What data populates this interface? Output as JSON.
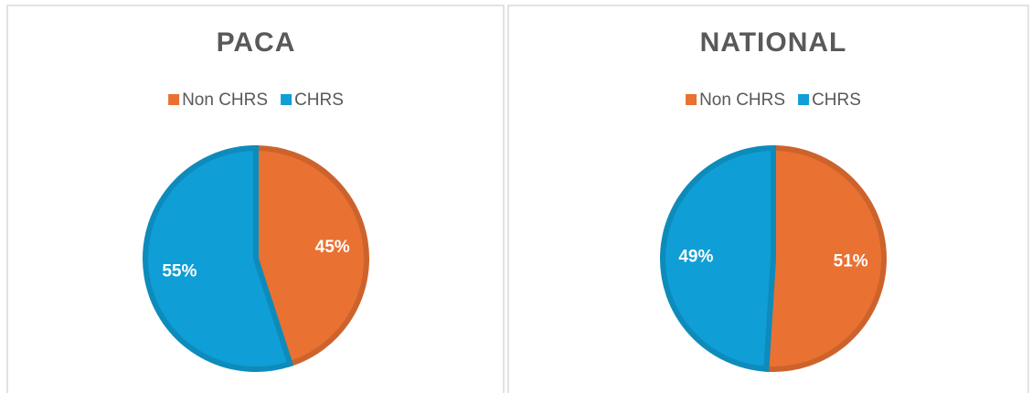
{
  "chart_data": [
    {
      "type": "pie",
      "title": "PACA",
      "categories": [
        "Non CHRS",
        "CHRS"
      ],
      "values": [
        45,
        55
      ],
      "value_labels": [
        "45%",
        "55%"
      ],
      "colors": [
        "#e97132",
        "#0f9ed5"
      ],
      "legend": "top"
    },
    {
      "type": "pie",
      "title": "NATIONAL",
      "categories": [
        "Non CHRS",
        "CHRS"
      ],
      "values": [
        51,
        49
      ],
      "value_labels": [
        "51%",
        "49%"
      ],
      "colors": [
        "#e97132",
        "#0f9ed5"
      ],
      "legend": "top"
    }
  ]
}
